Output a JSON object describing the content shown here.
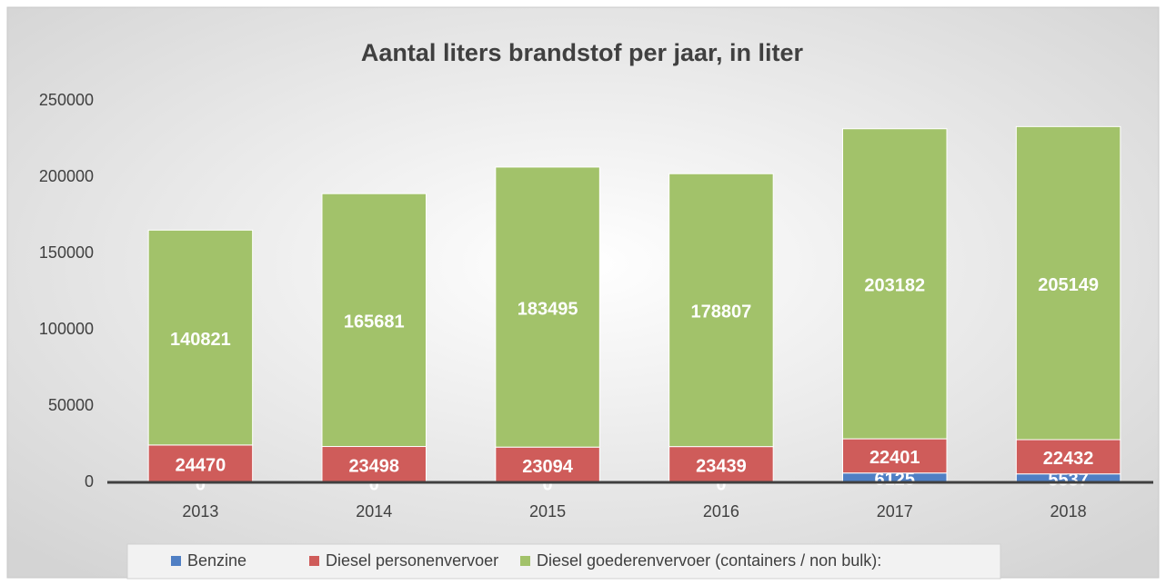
{
  "chart_data": {
    "type": "bar",
    "stacked": true,
    "title": "Aantal liters brandstof per jaar, in liter",
    "categories": [
      "2013",
      "2014",
      "2015",
      "2016",
      "2017",
      "2018"
    ],
    "series": [
      {
        "name": "Benzine",
        "color": "#4f7fc4",
        "values": [
          0,
          0,
          0,
          0,
          6125,
          5537
        ]
      },
      {
        "name": "Diesel personenvervoer",
        "color": "#cf5c5a",
        "values": [
          24470,
          23498,
          23094,
          23439,
          22401,
          22432
        ]
      },
      {
        "name": "Diesel goederenvervoer (containers / non bulk):",
        "color": "#a2c26a",
        "values": [
          140821,
          165681,
          183495,
          178807,
          203182,
          205149
        ]
      }
    ],
    "ylim": [
      0,
      250000
    ],
    "yticks": [
      0,
      50000,
      100000,
      150000,
      200000,
      250000
    ],
    "grid": false,
    "legend": "bottom",
    "data_labels": true
  }
}
